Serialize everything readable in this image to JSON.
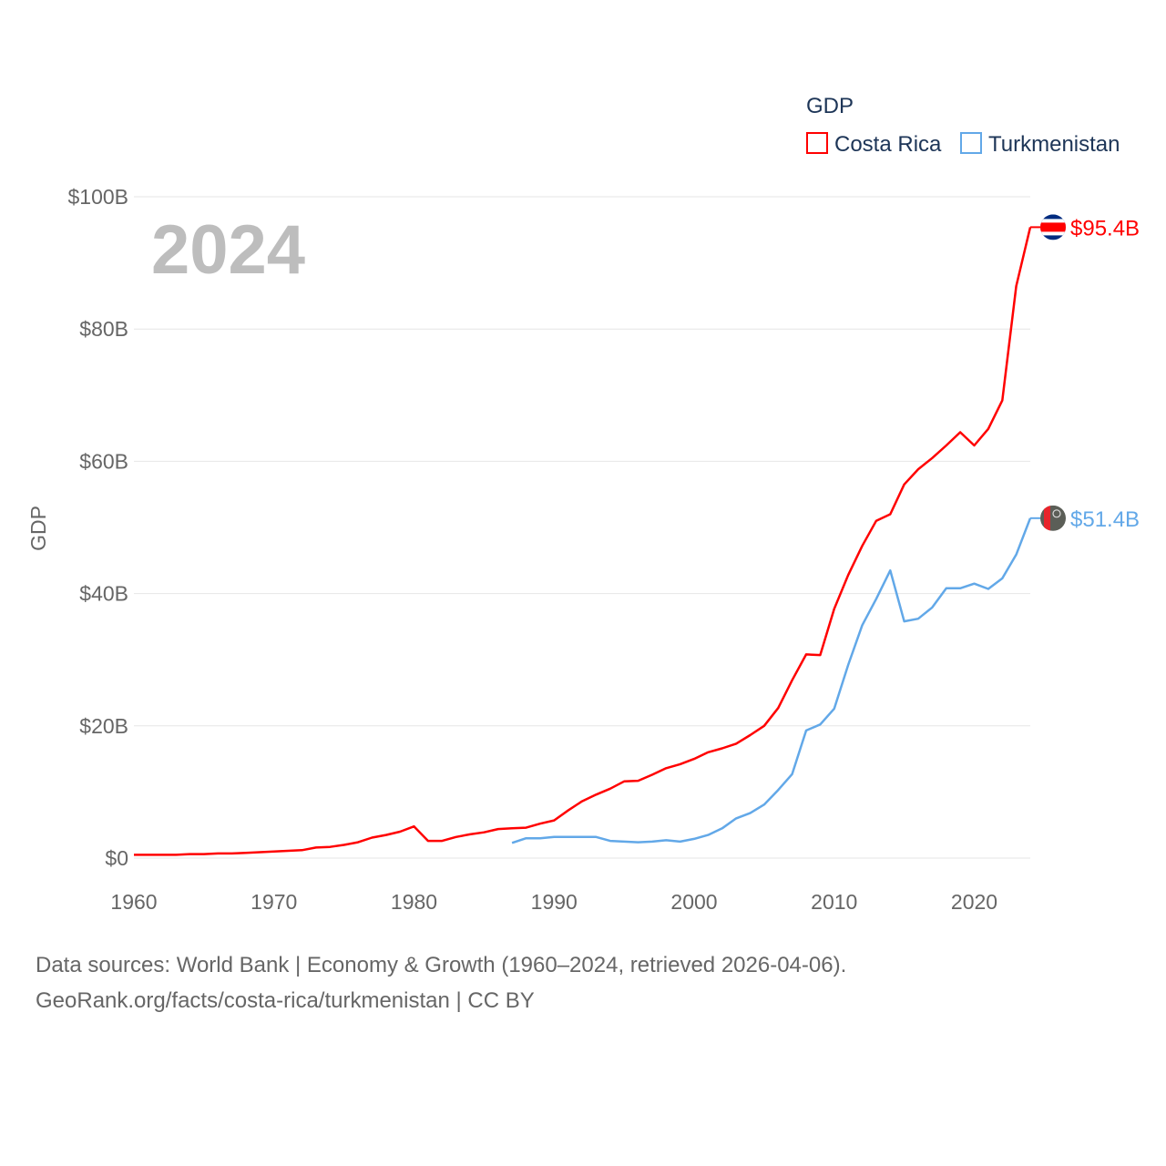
{
  "chart_data": {
    "type": "line",
    "title": "",
    "year_label": "2024",
    "xlabel": "",
    "ylabel": "GDP",
    "legend_title": "GDP",
    "legend_placement": "top-right",
    "xlim": [
      1960,
      2024
    ],
    "ylim": [
      0,
      100
    ],
    "x_ticks": [
      1960,
      1970,
      1980,
      1990,
      2000,
      2010,
      2020
    ],
    "x_tick_labels": [
      "1960",
      "1970",
      "1980",
      "1990",
      "2000",
      "2010",
      "2020"
    ],
    "y_ticks": [
      0,
      20,
      40,
      60,
      80,
      100
    ],
    "y_tick_labels": [
      "$0",
      "$20B",
      "$40B",
      "$60B",
      "$80B",
      "$100B"
    ],
    "grid": true,
    "units": "USD billions",
    "series": [
      {
        "name": "Costa Rica",
        "color": "#ff0000",
        "end_label": "$95.4B",
        "flag": "costa-rica-flag",
        "start_year": 1960,
        "values": [
          0.5,
          0.5,
          0.5,
          0.5,
          0.6,
          0.6,
          0.7,
          0.7,
          0.8,
          0.9,
          1.0,
          1.1,
          1.2,
          1.6,
          1.7,
          2.0,
          2.4,
          3.1,
          3.5,
          4.0,
          4.8,
          2.6,
          2.6,
          3.2,
          3.6,
          3.9,
          4.4,
          4.5,
          4.6,
          5.2,
          5.7,
          7.2,
          8.6,
          9.6,
          10.5,
          11.6,
          11.7,
          12.6,
          13.6,
          14.2,
          15.0,
          16.0,
          16.6,
          17.3,
          18.6,
          20.0,
          22.7,
          26.9,
          30.8,
          30.7,
          37.7,
          42.8,
          47.2,
          51.0,
          52.0,
          56.5,
          58.8,
          60.5,
          62.4,
          64.4,
          62.4,
          64.9,
          69.2,
          86.5,
          95.4
        ]
      },
      {
        "name": "Turkmenistan",
        "color": "#62a8e8",
        "end_label": "$51.4B",
        "flag": "turkmenistan-flag",
        "start_year": 1987,
        "values": [
          2.3,
          3.0,
          3.0,
          3.2,
          3.2,
          3.2,
          3.2,
          2.6,
          2.5,
          2.4,
          2.5,
          2.7,
          2.5,
          2.9,
          3.5,
          4.5,
          6.0,
          6.8,
          8.1,
          10.3,
          12.7,
          19.3,
          20.2,
          22.6,
          29.2,
          35.2,
          39.2,
          43.5,
          35.8,
          36.2,
          37.9,
          40.8,
          40.8,
          41.5,
          40.7,
          42.3,
          45.9,
          51.4
        ]
      }
    ]
  },
  "footer": {
    "line1": "Data sources: World Bank | Economy & Growth (1960–2024, retrieved 2026-04-06).",
    "line2": "GeoRank.org/facts/costa-rica/turkmenistan | CC BY"
  }
}
